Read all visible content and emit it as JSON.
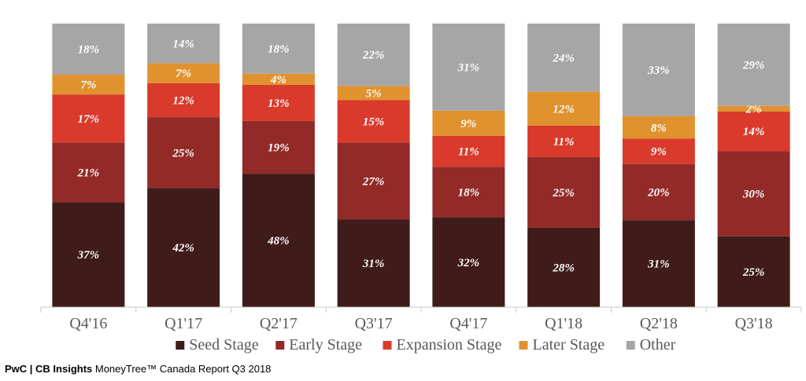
{
  "chart_data": {
    "type": "bar",
    "stacked": true,
    "value_format": "percent",
    "categories": [
      "Q4'16",
      "Q1'17",
      "Q2'17",
      "Q3'17",
      "Q4'17",
      "Q1'18",
      "Q2'18",
      "Q3'18"
    ],
    "series": [
      {
        "name": "Seed Stage",
        "color": "#3f1c19",
        "values": [
          37,
          42,
          48,
          31,
          32,
          28,
          31,
          25
        ]
      },
      {
        "name": "Early Stage",
        "color": "#922b28",
        "values": [
          21,
          25,
          19,
          27,
          18,
          25,
          20,
          30
        ]
      },
      {
        "name": "Expansion Stage",
        "color": "#d93a2b",
        "values": [
          17,
          12,
          13,
          15,
          11,
          11,
          9,
          14
        ]
      },
      {
        "name": "Later Stage",
        "color": "#e0922f",
        "values": [
          7,
          7,
          4,
          5,
          9,
          12,
          8,
          2
        ]
      },
      {
        "name": "Other",
        "color": "#a6a6a6",
        "values": [
          18,
          14,
          18,
          22,
          31,
          24,
          33,
          29
        ]
      }
    ],
    "legend_position": "bottom",
    "grid": false
  },
  "footer": {
    "brand": "PwC | CB Insights",
    "report": " MoneyTree™ Canada Report Q3 2018"
  }
}
